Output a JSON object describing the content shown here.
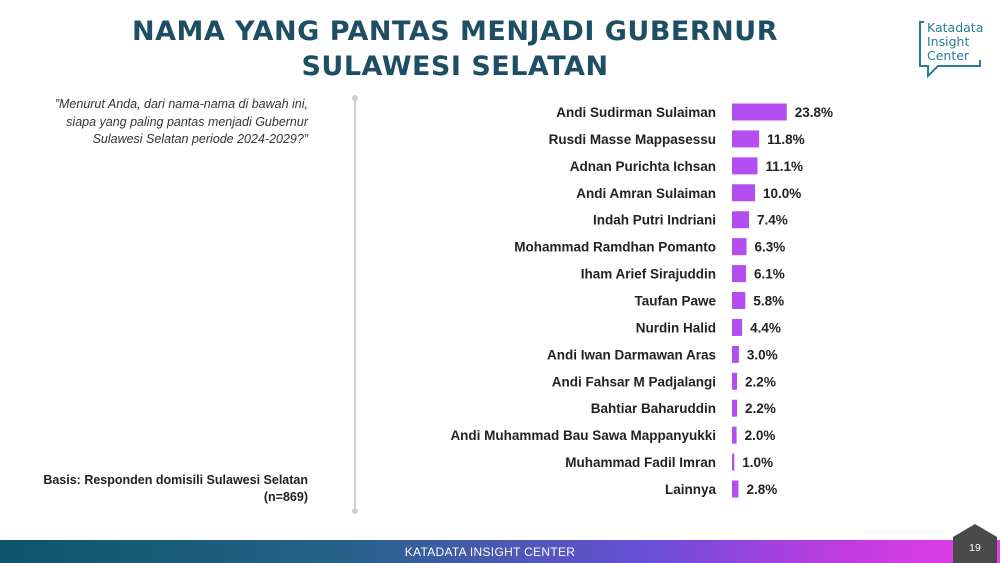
{
  "header": {
    "title_line1": "NAMA YANG PANTAS MENJADI GUBERNUR",
    "title_line2": "SULAWESI SELATAN"
  },
  "logo": {
    "line1": "Katadata",
    "line2": "Insight",
    "line3": "Center",
    "icon": "speech-bubble-icon",
    "color": "#2a7c95"
  },
  "question": "”Menurut Anda, dari nama-nama di bawah ini, siapa yang paling pantas menjadi Gubernur Sulawesi Selatan periode 2024-2029?”",
  "basis": {
    "line1": "Basis: Responden domisili Sulawesi Selatan",
    "line2": "(n=869)"
  },
  "footer": {
    "text": "KATADATA INSIGHT CENTER",
    "page_number": "19"
  },
  "colors": {
    "bar": "#b44ef0",
    "title": "#1d4e63"
  },
  "chart_data": {
    "type": "bar",
    "orientation": "horizontal",
    "categories": [
      "Andi Sudirman Sulaiman",
      "Rusdi Masse Mappasessu",
      "Adnan Purichta Ichsan",
      "Andi Amran Sulaiman",
      "Indah Putri Indriani",
      "Mohammad Ramdhan Pomanto",
      "Iham Arief Sirajuddin",
      "Taufan Pawe",
      "Nurdin Halid",
      "Andi Iwan Darmawan Aras",
      "Andi Fahsar M Padjalangi",
      "Bahtiar Baharuddin",
      "Andi Muhammad Bau Sawa Mappanyukki",
      "Muhammad Fadil Imran",
      "Lainnya"
    ],
    "values": [
      23.8,
      11.8,
      11.1,
      10.0,
      7.4,
      6.3,
      6.1,
      5.8,
      4.4,
      3.0,
      2.2,
      2.2,
      2.0,
      1.0,
      2.8
    ],
    "value_labels": [
      "23.8%",
      "11.8%",
      "11.1%",
      "10.0%",
      "7.4%",
      "6.3%",
      "6.1%",
      "5.8%",
      "4.4%",
      "3.0%",
      "2.2%",
      "2.2%",
      "2.0%",
      "1.0%",
      "2.8%"
    ],
    "title": "",
    "xlabel": "",
    "ylabel": "",
    "grid": false,
    "legend": "none"
  }
}
